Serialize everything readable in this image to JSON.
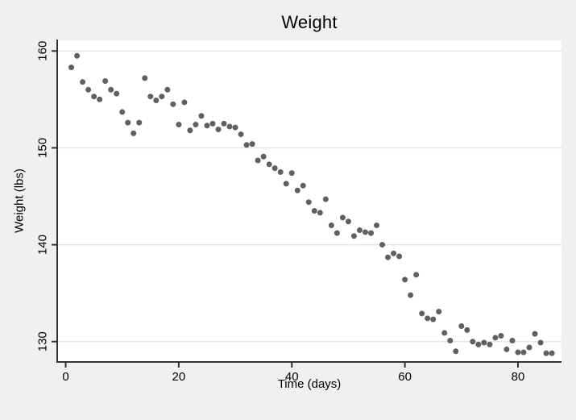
{
  "chart_data": {
    "type": "scatter",
    "title": "Weight",
    "xlabel": "Time (days)",
    "ylabel": "Weight (lbs)",
    "xticks": [
      0,
      20,
      40,
      60,
      80
    ],
    "yticks": [
      130,
      140,
      150,
      160
    ],
    "xlim": [
      -1.5,
      87.7
    ],
    "ylim": [
      127.9,
      161.1
    ],
    "grid": "horizontal-only",
    "legend": "none",
    "marker": "filled-circle",
    "x": [
      1,
      2,
      3,
      4,
      5,
      6,
      7,
      8,
      9,
      10,
      11,
      12,
      13,
      14,
      15,
      16,
      17,
      18,
      19,
      20,
      21,
      22,
      23,
      24,
      25,
      26,
      27,
      28,
      29,
      30,
      31,
      32,
      33,
      34,
      35,
      36,
      37,
      38,
      39,
      40,
      41,
      42,
      43,
      44,
      45,
      46,
      47,
      48,
      49,
      50,
      51,
      52,
      53,
      54,
      55,
      56,
      57,
      58,
      59,
      60,
      61,
      62,
      63,
      64,
      65,
      66,
      67,
      68,
      69,
      70,
      71,
      72,
      73,
      74,
      75,
      76,
      77,
      78,
      79,
      80,
      81,
      82,
      83,
      84,
      85,
      86
    ],
    "y": [
      158.3,
      159.5,
      156.8,
      156.0,
      155.3,
      155.0,
      156.9,
      156.0,
      155.6,
      153.7,
      152.6,
      151.5,
      152.6,
      157.2,
      155.3,
      154.9,
      155.3,
      156.0,
      154.5,
      152.4,
      154.7,
      151.8,
      152.4,
      153.3,
      152.3,
      152.5,
      151.9,
      152.5,
      152.2,
      152.1,
      151.4,
      150.3,
      150.4,
      148.7,
      149.1,
      148.3,
      147.9,
      147.5,
      146.3,
      147.4,
      145.6,
      146.1,
      144.4,
      143.5,
      143.3,
      144.7,
      142.0,
      141.2,
      142.8,
      142.4,
      140.9,
      141.5,
      141.3,
      141.2,
      142.0,
      140.0,
      138.7,
      139.1,
      138.8,
      136.4,
      134.8,
      136.9,
      132.9,
      132.4,
      132.3,
      133.1,
      130.9,
      130.1,
      129.0,
      131.6,
      131.2,
      130.0,
      129.7,
      129.9,
      129.7,
      130.4,
      130.6,
      129.2,
      130.1,
      128.9,
      128.9,
      129.4,
      130.8,
      129.9,
      128.8,
      128.8
    ],
    "colors": {
      "marker": "#606060",
      "background": "#f0f0f0",
      "plot_background": "#ffffff",
      "grid": "#e6e6e6",
      "axis": "#333333",
      "text": "#000000"
    }
  }
}
